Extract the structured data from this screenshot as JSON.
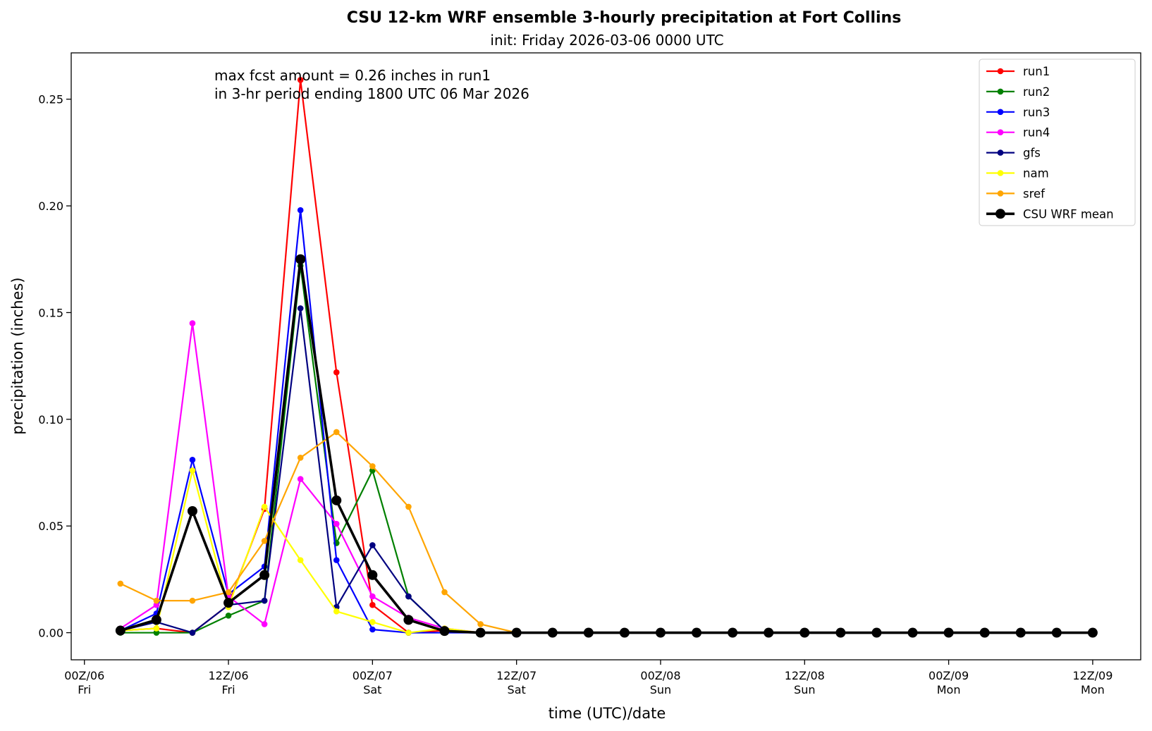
{
  "chart_data": {
    "type": "line",
    "title": "CSU 12-km WRF ensemble 3-hourly precipitation at Fort Collins",
    "subtitle": "init: Friday 2026-03-06 0000 UTC",
    "xlabel": "time (UTC)/date",
    "ylabel": "precipitation (inches)",
    "annotation": [
      "max fcst amount = 0.26 inches in run1",
      "in 3-hr period ending 1800 UTC 06 Mar 2026"
    ],
    "xlim_hours": [
      -1.1,
      88.0
    ],
    "ylim": [
      -0.0127,
      0.2717
    ],
    "x_hours": [
      3,
      6,
      9,
      12,
      15,
      18,
      21,
      24,
      27,
      30,
      33,
      36,
      39,
      42,
      45,
      48,
      51,
      54,
      57,
      60,
      63,
      66,
      69,
      72,
      75,
      78,
      81,
      84
    ],
    "x_ticks": [
      {
        "hour": 0,
        "label": [
          "00Z/06",
          "Fri"
        ]
      },
      {
        "hour": 12,
        "label": [
          "12Z/06",
          "Fri"
        ]
      },
      {
        "hour": 24,
        "label": [
          "00Z/07",
          "Sat"
        ]
      },
      {
        "hour": 36,
        "label": [
          "12Z/07",
          "Sat"
        ]
      },
      {
        "hour": 48,
        "label": [
          "00Z/08",
          "Sun"
        ]
      },
      {
        "hour": 60,
        "label": [
          "12Z/08",
          "Sun"
        ]
      },
      {
        "hour": 72,
        "label": [
          "00Z/09",
          "Mon"
        ]
      },
      {
        "hour": 84,
        "label": [
          "12Z/09",
          "Mon"
        ]
      }
    ],
    "y_ticks": [
      {
        "value": 0.0,
        "label": "0.00"
      },
      {
        "value": 0.05,
        "label": "0.05"
      },
      {
        "value": 0.1,
        "label": "0.10"
      },
      {
        "value": 0.15,
        "label": "0.15"
      },
      {
        "value": 0.2,
        "label": "0.20"
      },
      {
        "value": 0.25,
        "label": "0.25"
      }
    ],
    "legend_position": "top-right",
    "grid": false,
    "series": [
      {
        "name": "run1",
        "color": "#ff0000",
        "values": [
          0.001,
          0.002,
          0.0,
          0.013,
          0.058,
          0.259,
          0.122,
          0.013,
          0.0,
          0.001,
          0,
          0,
          0,
          0,
          0,
          0,
          0,
          0,
          0,
          0,
          0,
          0,
          0,
          0,
          0,
          0,
          0,
          0
        ]
      },
      {
        "name": "run2",
        "color": "#008000",
        "values": [
          0.0,
          0.0,
          0.0,
          0.008,
          0.015,
          0.172,
          0.042,
          0.076,
          0.017,
          0.001,
          0,
          0,
          0,
          0,
          0,
          0,
          0,
          0,
          0,
          0,
          0,
          0,
          0,
          0,
          0,
          0,
          0,
          0
        ]
      },
      {
        "name": "run3",
        "color": "#0000ff",
        "values": [
          0.001,
          0.009,
          0.081,
          0.018,
          0.031,
          0.198,
          0.034,
          0.0015,
          0.0,
          0.0,
          0,
          0,
          0,
          0,
          0,
          0,
          0,
          0,
          0,
          0,
          0,
          0,
          0,
          0,
          0,
          0,
          0,
          0
        ]
      },
      {
        "name": "run4",
        "color": "#ff00ff",
        "values": [
          0.002,
          0.013,
          0.145,
          0.017,
          0.004,
          0.072,
          0.051,
          0.017,
          0.007,
          0.002,
          0,
          0,
          0,
          0,
          0,
          0,
          0,
          0,
          0,
          0,
          0,
          0,
          0,
          0,
          0,
          0,
          0,
          0
        ]
      },
      {
        "name": "gfs",
        "color": "#000080",
        "values": [
          0.001,
          0.005,
          0.0,
          0.013,
          0.015,
          0.152,
          0.012,
          0.041,
          0.017,
          0.001,
          0,
          0,
          0,
          0,
          0,
          0,
          0,
          0,
          0,
          0,
          0,
          0,
          0,
          0,
          0,
          0,
          0,
          0
        ]
      },
      {
        "name": "nam",
        "color": "#ffff00",
        "values": [
          0.001,
          0.002,
          0.076,
          0.012,
          0.059,
          0.034,
          0.01,
          0.005,
          0.0,
          0.002,
          0,
          0,
          0,
          0,
          0,
          0,
          0,
          0,
          0,
          0,
          0,
          0,
          0,
          0,
          0,
          0,
          0,
          0
        ]
      },
      {
        "name": "sref",
        "color": "#ffa500",
        "values": [
          0.023,
          0.015,
          0.015,
          0.019,
          0.043,
          0.082,
          0.094,
          0.078,
          0.059,
          0.019,
          0.004,
          0,
          0,
          0,
          0,
          0,
          0,
          0,
          0,
          0,
          0,
          0,
          0,
          0,
          0,
          0,
          0,
          0
        ]
      },
      {
        "name": "CSU WRF mean",
        "color": "#000000",
        "bold": true,
        "values": [
          0.001,
          0.006,
          0.057,
          0.014,
          0.027,
          0.175,
          0.062,
          0.027,
          0.006,
          0.0008,
          0,
          0,
          0,
          0,
          0,
          0,
          0,
          0,
          0,
          0,
          0,
          0,
          0,
          0,
          0,
          0,
          0,
          0
        ]
      }
    ]
  }
}
